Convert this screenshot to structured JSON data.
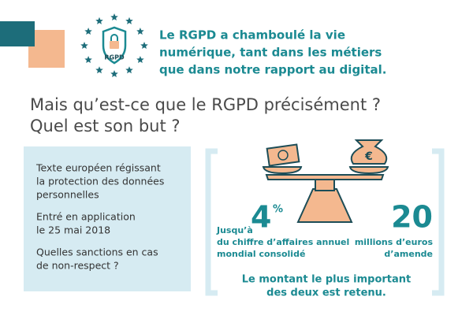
{
  "header": {
    "lines": [
      "Le RGPD a chamboulé la vie",
      "numérique, tant dans les métiers",
      "que dans notre rapport au digital."
    ],
    "badge": "RGPD"
  },
  "question": {
    "lines": [
      "Mais qu’est-ce que le RGPD précisément ?",
      "Quel est son but ?"
    ]
  },
  "panel": {
    "items": [
      [
        "Texte européen régissant",
        "la protection des données",
        "personnelles"
      ],
      [
        "Entré en application",
        "le 25 mai 2018"
      ],
      [
        "Quelles sanctions en cas",
        "de non-respect ?"
      ]
    ]
  },
  "sanctions": {
    "left": {
      "prefix": "Jusqu’à",
      "number": "4",
      "unit": "%",
      "lines": [
        "du chiffre d’affaires annuel",
        "mondial consolidé"
      ]
    },
    "right": {
      "number": "20",
      "lines": [
        "millions d’euros",
        "d’amende"
      ]
    },
    "bag_symbol": "€",
    "note": [
      "Le montant le plus important",
      "des deux est retenu."
    ]
  }
}
